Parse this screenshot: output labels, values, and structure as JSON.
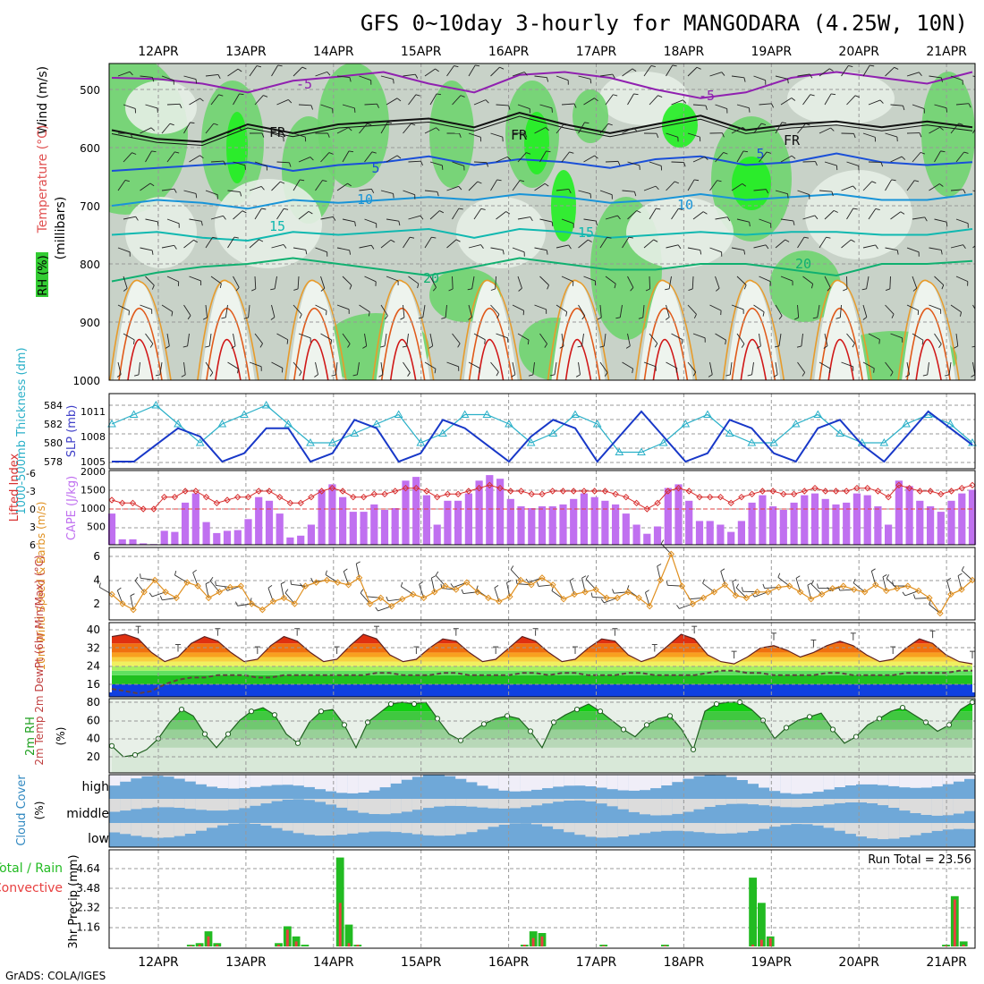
{
  "title": "GFS 0~10day 3-hourly for MANGODARA (4.25W, 10N)",
  "footer": "GrADS: COLA/IGES",
  "dates": [
    "12APR",
    "13APR",
    "14APR",
    "15APR",
    "16APR",
    "17APR",
    "18APR",
    "19APR",
    "20APR",
    "21APR"
  ],
  "chart_data": [
    {
      "panel": "upper-air",
      "type": "heatmap",
      "ylabel": "(millibars)",
      "y_ticks": [
        500,
        600,
        700,
        800,
        900,
        1000
      ],
      "side_labels": [
        "Wind (m/s)",
        "Temperature (°C)",
        "RH (%)"
      ],
      "contour_labels": [
        "-5",
        "FR",
        "5",
        "10",
        "15",
        "20"
      ],
      "isotherms": [
        {
          "label": "-5",
          "p": [
            480,
            482,
            490,
            505,
            485,
            478,
            470,
            490,
            505,
            475,
            470,
            480,
            500,
            515,
            505,
            480,
            470,
            480,
            490,
            470
          ]
        },
        {
          "label": "FR",
          "p": [
            570,
            585,
            590,
            560,
            575,
            560,
            555,
            550,
            565,
            540,
            560,
            575,
            560,
            545,
            570,
            560,
            555,
            565,
            555,
            565
          ]
        },
        {
          "label": "5",
          "p": [
            640,
            635,
            630,
            625,
            640,
            630,
            625,
            615,
            630,
            620,
            625,
            635,
            620,
            615,
            630,
            625,
            610,
            625,
            630,
            625
          ]
        },
        {
          "label": "10",
          "p": [
            700,
            690,
            695,
            705,
            690,
            695,
            690,
            685,
            690,
            680,
            685,
            695,
            690,
            680,
            690,
            685,
            680,
            690,
            690,
            680
          ]
        },
        {
          "label": "15",
          "p": [
            750,
            745,
            755,
            760,
            745,
            750,
            745,
            740,
            755,
            740,
            745,
            755,
            750,
            745,
            750,
            745,
            745,
            750,
            750,
            740
          ]
        },
        {
          "label": "20",
          "p": [
            830,
            815,
            805,
            800,
            790,
            800,
            810,
            820,
            805,
            790,
            800,
            810,
            810,
            800,
            800,
            810,
            820,
            800,
            800,
            795
          ]
        }
      ]
    },
    {
      "panel": "thickness-slp",
      "type": "line",
      "ylabel": "1000-500mb Thickness (dm)",
      "ylabel2": "SLP (mb)",
      "left_ticks": [
        "584",
        "582",
        "580",
        "578"
      ],
      "right_ticks": [
        "1011",
        "1008",
        "1005"
      ],
      "series": [
        {
          "name": "SLP (mb)",
          "values": [
            1005,
            1005,
            1007,
            1009,
            1008,
            1005,
            1006,
            1009,
            1009,
            1005,
            1006,
            1010,
            1009,
            1005,
            1006,
            1010,
            1009,
            1007,
            1005,
            1008,
            1010,
            1009,
            1005,
            1008,
            1011,
            1008,
            1005,
            1006,
            1010,
            1009,
            1006,
            1005,
            1009,
            1010,
            1007,
            1005,
            1008,
            1011,
            1009,
            1007
          ]
        },
        {
          "name": "1000-500mb Thickness (dm)",
          "values": [
            582,
            583,
            584,
            582,
            580,
            582,
            583,
            584,
            582,
            580,
            580,
            581,
            582,
            583,
            580,
            581,
            583,
            583,
            582,
            580,
            581,
            583,
            582,
            579,
            579,
            580,
            582,
            583,
            581,
            580,
            580,
            582,
            583,
            581,
            580,
            580,
            582,
            583,
            582,
            580
          ]
        }
      ]
    },
    {
      "panel": "cape-li",
      "type": "bar",
      "ylabel": "Lifted Index",
      "ylabel2": "CAPE (J/kg)",
      "left_ticks": [
        "-6",
        "-3",
        "0",
        "3",
        "6"
      ],
      "right_ticks": [
        "2000",
        "1500",
        "1000",
        "500"
      ],
      "series": [
        {
          "name": "CAPE (J/kg)",
          "values": [
            850,
            150,
            150,
            40,
            20,
            380,
            350,
            1150,
            1400,
            620,
            320,
            380,
            400,
            700,
            1300,
            1200,
            850,
            200,
            250,
            550,
            1500,
            1650,
            1300,
            900,
            900,
            1100,
            950,
            1000,
            1750,
            1850,
            1350,
            550,
            1200,
            1200,
            1400,
            1750,
            1900,
            1800,
            1250,
            1050,
            1000,
            1050,
            1050,
            1100,
            1250,
            1400,
            1300,
            1200,
            1100,
            850,
            550,
            300,
            500,
            1550,
            1650,
            1200,
            650,
            650,
            550,
            350,
            650,
            1150,
            1350,
            1050,
            950,
            1150,
            1350,
            1400,
            1250,
            1100,
            1150,
            1400,
            1350,
            1050,
            550,
            1750,
            1600,
            1200,
            1050,
            900,
            1200,
            1400,
            1500
          ]
        },
        {
          "name": "Lifted Index",
          "values": [
            -1.5,
            -1,
            -1,
            0,
            0,
            -2,
            -2,
            -3,
            -3,
            -2,
            -1,
            -1.5,
            -2,
            -2,
            -3,
            -3,
            -2,
            -1,
            -1,
            -2,
            -3,
            -3.5,
            -3,
            -2,
            -2,
            -2.5,
            -2.5,
            -3,
            -3.5,
            -3.5,
            -3,
            -2,
            -2.5,
            -2.5,
            -3,
            -3.5,
            -4,
            -3.5,
            -3,
            -3,
            -2.5,
            -2.5,
            -3,
            -3,
            -3,
            -3,
            -3,
            -3,
            -2.5,
            -2,
            -1,
            0,
            -1,
            -3,
            -3.5,
            -3,
            -2,
            -2,
            -2,
            -1,
            -2,
            -2.5,
            -3,
            -3,
            -2.5,
            -2.5,
            -3,
            -3.5,
            -3,
            -3,
            -3,
            -3.5,
            -3.5,
            -3,
            -2,
            -4,
            -3.5,
            -3,
            -3,
            -2.5,
            -3,
            -3.5,
            -4
          ]
        }
      ]
    },
    {
      "panel": "wind10m",
      "type": "line",
      "ylabel": "10m Wind Speed & Barbs (m/s)",
      "y_ticks": [
        "6",
        "4",
        "2"
      ],
      "series": [
        {
          "name": "10m Wind Speed",
          "values": [
            2.8,
            2,
            1.5,
            3,
            4,
            3,
            2.5,
            3.8,
            3.5,
            2.5,
            3,
            3.4,
            3.5,
            2,
            1.5,
            2.2,
            2.5,
            2,
            3.5,
            3.8,
            4,
            3.8,
            3.6,
            4.2,
            2,
            2.5,
            1.8,
            2.4,
            2.8,
            2.5,
            3,
            3.5,
            3.2,
            3.8,
            3,
            2.5,
            2.2,
            2.6,
            4,
            3.6,
            4.2,
            3.6,
            2.4,
            2.8,
            3,
            3.2,
            2.5,
            2.5,
            3,
            2.5,
            1.8,
            4,
            6.2,
            3.5,
            2,
            2.5,
            3,
            3.6,
            2.7,
            2.5,
            3,
            3,
            3.4,
            3.5,
            3,
            2.4,
            2.8,
            3.3,
            3.5,
            3.2,
            3,
            3.6,
            3.1,
            3.3,
            3.5,
            3.1,
            2.5,
            1.2,
            2.8,
            3.2,
            4
          ]
        }
      ]
    },
    {
      "panel": "temp2m",
      "type": "area",
      "ylabel": "2m Temp 2m DewPt (6hr Min/Max) (°C)",
      "y_ticks": [
        "40",
        "32",
        "24",
        "16"
      ],
      "series": [
        {
          "name": "2m Temp",
          "values": [
            37,
            38,
            36,
            30,
            26,
            28,
            34,
            37,
            35,
            30,
            26,
            27,
            33,
            37,
            35,
            30,
            26,
            27,
            33,
            38,
            36,
            29,
            26,
            27,
            32,
            36,
            35,
            30,
            26,
            27,
            32,
            37,
            35,
            30,
            26,
            27,
            32,
            36,
            35,
            29,
            26,
            28,
            33,
            38,
            36,
            29,
            26,
            25,
            28,
            32,
            33,
            31,
            28,
            30,
            33,
            35,
            33,
            29,
            26,
            27,
            32,
            36,
            34,
            29,
            26,
            25
          ]
        },
        {
          "name": "2m DewPt",
          "values": [
            14,
            13,
            12,
            13,
            16,
            18,
            19,
            19,
            20,
            20,
            20,
            19,
            19,
            20,
            20,
            20,
            20,
            20,
            20,
            20,
            21,
            21,
            20,
            20,
            20,
            21,
            21,
            20,
            20,
            20,
            20,
            21,
            21,
            20,
            21,
            21,
            20,
            20,
            20,
            21,
            21,
            20,
            20,
            20,
            20,
            21,
            22,
            22,
            21,
            21,
            20,
            20,
            20,
            20,
            21,
            21,
            20,
            20,
            20,
            20,
            21,
            21,
            21,
            21,
            22,
            22
          ]
        }
      ]
    },
    {
      "panel": "rh2m",
      "type": "area",
      "ylabel": "2m RH (%)",
      "y_ticks": [
        "80",
        "60",
        "40",
        "20"
      ],
      "series": [
        {
          "name": "2m RH",
          "values": [
            32,
            20,
            22,
            28,
            40,
            58,
            72,
            65,
            45,
            30,
            45,
            60,
            70,
            74,
            66,
            45,
            35,
            58,
            70,
            72,
            55,
            30,
            58,
            68,
            78,
            80,
            78,
            80,
            62,
            45,
            38,
            48,
            56,
            62,
            65,
            62,
            48,
            30,
            58,
            66,
            72,
            78,
            70,
            60,
            50,
            42,
            55,
            62,
            65,
            50,
            28,
            70,
            78,
            80,
            80,
            72,
            60,
            40,
            52,
            60,
            64,
            68,
            50,
            35,
            42,
            55,
            62,
            70,
            74,
            66,
            58,
            48,
            55,
            72,
            80
          ]
        }
      ]
    },
    {
      "panel": "cloud",
      "type": "heatmap",
      "ylabel": "Cloud Cover (%)",
      "rows": [
        "high",
        "middle",
        "low"
      ]
    },
    {
      "panel": "precip",
      "type": "bar",
      "ylabel": "3hr Precip (mm)",
      "side_labels": [
        "Total / Rain",
        "Convective"
      ],
      "y_ticks": [
        "4.64",
        "3.48",
        "2.32",
        "1.16"
      ],
      "annotation": "Run Total = 23.56",
      "series": [
        {
          "name": "Total",
          "values": [
            0,
            0,
            0,
            0,
            0,
            0,
            0,
            0,
            0,
            0.1,
            0.2,
            0.9,
            0.2,
            0,
            0,
            0,
            0,
            0,
            0,
            0.2,
            1.2,
            0.6,
            0.1,
            0,
            0,
            0,
            5.3,
            1.3,
            0.1,
            0,
            0,
            0,
            0,
            0,
            0,
            0,
            0,
            0,
            0,
            0,
            0,
            0,
            0,
            0,
            0,
            0,
            0,
            0.1,
            0.9,
            0.8,
            0,
            0,
            0,
            0,
            0,
            0,
            0.1,
            0,
            0,
            0,
            0,
            0,
            0,
            0.1,
            0,
            0,
            0,
            0,
            0,
            0,
            0,
            0,
            0,
            4.1,
            2.6,
            0.6,
            0,
            0,
            0,
            0,
            0,
            0,
            0,
            0,
            0,
            0,
            0,
            0,
            0,
            0,
            0,
            0,
            0,
            0,
            0,
            0.1,
            3.0,
            0.3,
            0
          ]
        },
        {
          "name": "Convective",
          "values": [
            0,
            0,
            0,
            0,
            0,
            0,
            0,
            0,
            0,
            0.05,
            0.1,
            0.6,
            0.1,
            0,
            0,
            0,
            0,
            0,
            0,
            0.1,
            1.0,
            0.3,
            0,
            0,
            0,
            0,
            2.6,
            0.2,
            0.1,
            0,
            0,
            0,
            0,
            0,
            0,
            0,
            0,
            0,
            0,
            0,
            0,
            0,
            0,
            0,
            0,
            0,
            0,
            0.1,
            0.5,
            0.6,
            0,
            0,
            0,
            0,
            0,
            0,
            0.05,
            0,
            0,
            0,
            0,
            0,
            0,
            0.05,
            0,
            0,
            0,
            0,
            0,
            0,
            0,
            0,
            0,
            0.1,
            0.4,
            0.5,
            0,
            0,
            0,
            0,
            0,
            0,
            0,
            0,
            0,
            0,
            0,
            0,
            0,
            0,
            0,
            0,
            0,
            0,
            0,
            0.05,
            2.8,
            0.1,
            0
          ]
        }
      ]
    }
  ]
}
